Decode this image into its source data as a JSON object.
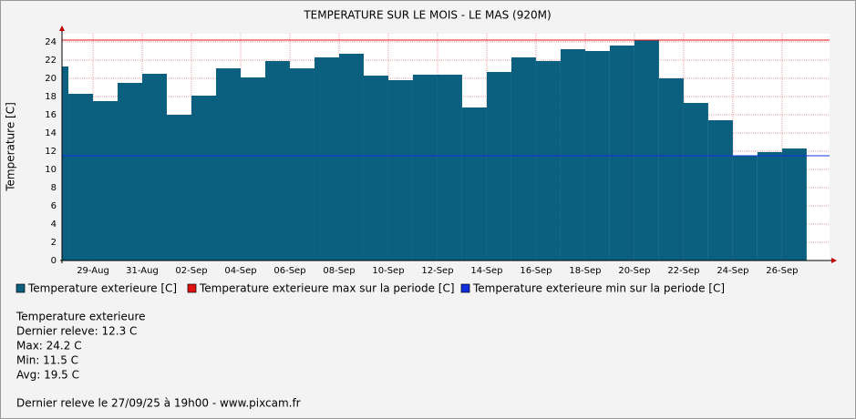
{
  "chart_data": {
    "type": "bar",
    "title": "TEMPERATURE SUR LE MOIS - LE MAS (920M)",
    "y_label": "Temperature [C]",
    "x": [
      0,
      1,
      2,
      3,
      4,
      5,
      6,
      7,
      8,
      9,
      10,
      11,
      12,
      13,
      14,
      15,
      16,
      17,
      18,
      19,
      20,
      21,
      22,
      23,
      24,
      25,
      26,
      27,
      28,
      29,
      30
    ],
    "values": [
      21.3,
      18.3,
      17.5,
      19.5,
      20.5,
      16.0,
      18.1,
      21.1,
      20.1,
      21.9,
      21.1,
      22.3,
      22.7,
      20.3,
      19.8,
      20.4,
      20.4,
      16.8,
      20.7,
      22.3,
      21.9,
      23.2,
      23.0,
      23.6,
      24.2,
      20.0,
      17.3,
      15.4,
      11.5,
      11.9,
      12.3
    ],
    "xlim": [
      0.74,
      31.93
    ],
    "xticks": [
      {
        "value": 2,
        "label": "29-Aug"
      },
      {
        "value": 4,
        "label": "31-Aug"
      },
      {
        "value": 6,
        "label": "02-Sep"
      },
      {
        "value": 8,
        "label": "04-Sep"
      },
      {
        "value": 10,
        "label": "06-Sep"
      },
      {
        "value": 12,
        "label": "08-Sep"
      },
      {
        "value": 14,
        "label": "10-Sep"
      },
      {
        "value": 16,
        "label": "12-Sep"
      },
      {
        "value": 18,
        "label": "14-Sep"
      },
      {
        "value": 20,
        "label": "16-Sep"
      },
      {
        "value": 22,
        "label": "18-Sep"
      },
      {
        "value": 24,
        "label": "20-Sep"
      },
      {
        "value": 26,
        "label": "22-Sep"
      },
      {
        "value": 28,
        "label": "24-Sep"
      },
      {
        "value": 30,
        "label": "26-Sep"
      }
    ],
    "ylim": [
      0,
      24.9
    ],
    "yticks": [
      0,
      2,
      4,
      6,
      8,
      10,
      12,
      14,
      16,
      18,
      20,
      22,
      24
    ],
    "grid": true,
    "series": [
      {
        "name": "Temperature exterieure [C]",
        "color": "#0b6080"
      },
      {
        "name": "Temperature exterieure max sur la periode [C]",
        "color": "#e01010",
        "value": 24.2
      },
      {
        "name": "Temperature exterieure min sur la periode [C]",
        "color": "#1030e0",
        "value": 11.5
      }
    ],
    "stats": [
      "Temperature exterieure",
      "Dernier releve: 12.3 C",
      "Max: 24.2 C",
      "Min: 11.5 C",
      "Avg: 19.5 C"
    ],
    "footer": "Dernier releve le 27/09/25 à 19h00 - www.pixcam.fr"
  }
}
